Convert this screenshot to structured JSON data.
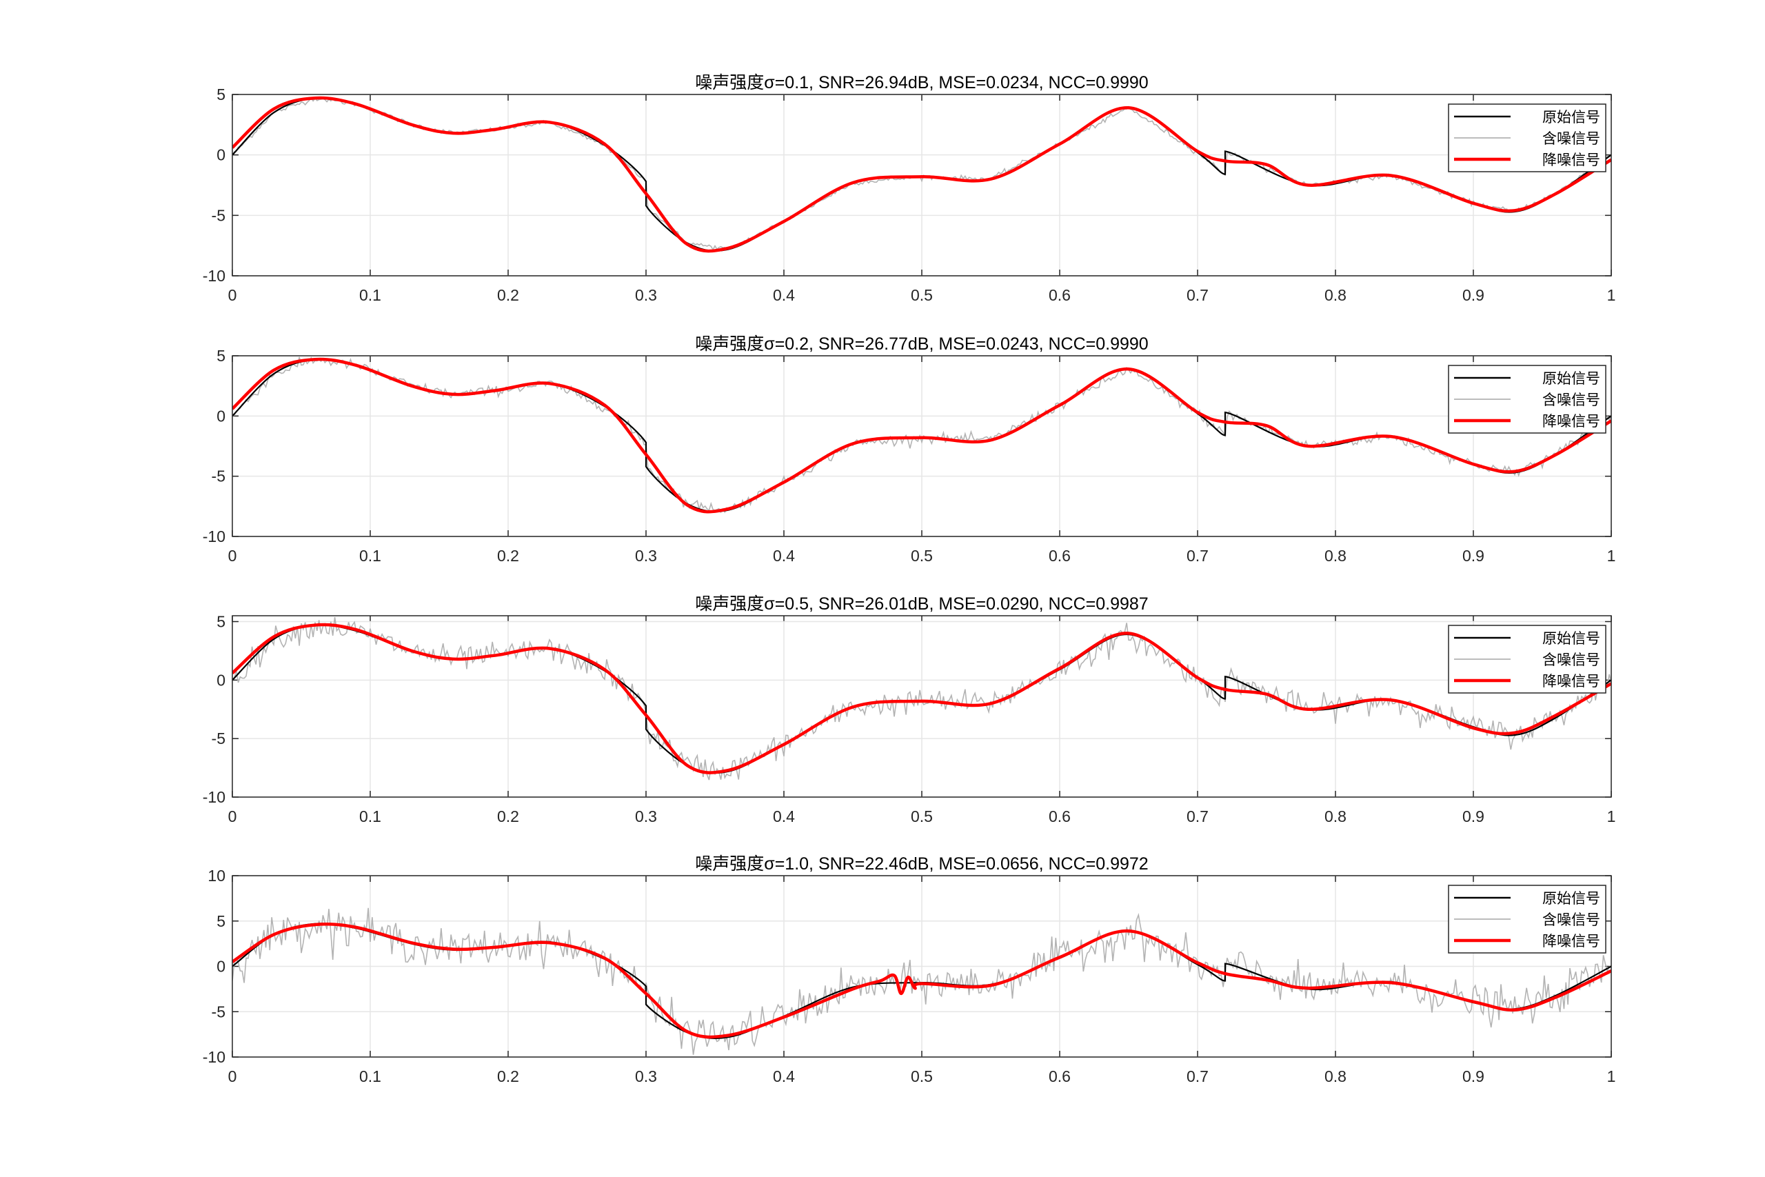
{
  "colors": {
    "original": "#000000",
    "noisy": "#b3b3b3",
    "denoised": "#ff0000",
    "grid": "#e6e6e6",
    "axis": "#262626",
    "text": "#262626",
    "background": "#ffffff"
  },
  "legend": {
    "original": "原始信号",
    "noisy": "含噪信号",
    "denoised": "降噪信号",
    "placement": "top-right"
  },
  "chart_data": [
    {
      "type": "line",
      "title": "噪声强度σ=0.1, SNR=26.94dB, MSE=0.0234, NCC=0.9990",
      "sigma": 0.1,
      "xlim": [
        0,
        1
      ],
      "ylim": [
        -10,
        5
      ],
      "xticks": [
        "0",
        "0.1",
        "0.2",
        "0.3",
        "0.4",
        "0.5",
        "0.6",
        "0.7",
        "0.8",
        "0.9",
        "1"
      ],
      "yticks": [
        "5",
        "0",
        "-5",
        "-10"
      ],
      "grid": true,
      "series": [
        {
          "name": "原始信号",
          "x": [
            0,
            0.03,
            0.06,
            0.09,
            0.13,
            0.16,
            0.19,
            0.23,
            0.27,
            0.3,
            0.3,
            0.33,
            0.36,
            0.4,
            0.45,
            0.5,
            0.55,
            0.6,
            0.65,
            0.7,
            0.72,
            0.72,
            0.78,
            0.84,
            0.9,
            0.93,
            0.96,
            1
          ],
          "y": [
            0,
            3.5,
            4.7,
            4.2,
            2.5,
            1.8,
            2.1,
            2.7,
            0.8,
            -2.2,
            -4.2,
            -7.3,
            -7.8,
            -5.5,
            -2.3,
            -1.8,
            -2.0,
            0.9,
            3.9,
            0.2,
            -1.6,
            0.3,
            -2.5,
            -1.7,
            -4.0,
            -4.7,
            -3.2,
            0
          ]
        },
        {
          "name": "含噪信号"
        },
        {
          "name": "降噪信号",
          "x": [
            0,
            0.03,
            0.06,
            0.09,
            0.13,
            0.16,
            0.19,
            0.23,
            0.27,
            0.3,
            0.33,
            0.36,
            0.4,
            0.45,
            0.5,
            0.55,
            0.6,
            0.65,
            0.7,
            0.72,
            0.75,
            0.78,
            0.84,
            0.9,
            0.93,
            0.96,
            1
          ],
          "y": [
            0.6,
            3.8,
            4.7,
            4.2,
            2.5,
            1.8,
            2.1,
            2.7,
            0.9,
            -3.2,
            -7.4,
            -7.7,
            -5.5,
            -2.3,
            -1.8,
            -2.0,
            0.9,
            3.9,
            0.3,
            -0.5,
            -0.8,
            -2.5,
            -1.7,
            -4.0,
            -4.6,
            -3.2,
            -0.4
          ]
        }
      ]
    },
    {
      "type": "line",
      "title": "噪声强度σ=0.2, SNR=26.77dB, MSE=0.0243, NCC=0.9990",
      "sigma": 0.2,
      "xlim": [
        0,
        1
      ],
      "ylim": [
        -10,
        5
      ],
      "xticks": [
        "0",
        "0.1",
        "0.2",
        "0.3",
        "0.4",
        "0.5",
        "0.6",
        "0.7",
        "0.8",
        "0.9",
        "1"
      ],
      "yticks": [
        "5",
        "0",
        "-5",
        "-10"
      ],
      "grid": true,
      "series": [
        {
          "name": "原始信号",
          "x": [
            0,
            0.03,
            0.06,
            0.09,
            0.13,
            0.16,
            0.19,
            0.23,
            0.27,
            0.3,
            0.3,
            0.33,
            0.36,
            0.4,
            0.45,
            0.5,
            0.55,
            0.6,
            0.65,
            0.7,
            0.72,
            0.72,
            0.78,
            0.84,
            0.9,
            0.93,
            0.96,
            1
          ],
          "y": [
            0,
            3.5,
            4.7,
            4.2,
            2.5,
            1.8,
            2.1,
            2.7,
            0.8,
            -2.2,
            -4.2,
            -7.3,
            -7.8,
            -5.5,
            -2.3,
            -1.8,
            -2.0,
            0.9,
            3.9,
            0.2,
            -1.6,
            0.3,
            -2.5,
            -1.7,
            -4.0,
            -4.7,
            -3.2,
            0
          ]
        },
        {
          "name": "含噪信号"
        },
        {
          "name": "降噪信号",
          "x": [
            0,
            0.03,
            0.06,
            0.09,
            0.13,
            0.16,
            0.19,
            0.23,
            0.27,
            0.3,
            0.33,
            0.36,
            0.4,
            0.45,
            0.5,
            0.55,
            0.6,
            0.65,
            0.7,
            0.72,
            0.75,
            0.78,
            0.84,
            0.9,
            0.93,
            0.96,
            1
          ],
          "y": [
            0.6,
            3.8,
            4.7,
            4.2,
            2.5,
            1.8,
            2.1,
            2.7,
            0.9,
            -3.2,
            -7.4,
            -7.7,
            -5.5,
            -2.3,
            -1.8,
            -2.0,
            0.9,
            3.9,
            0.3,
            -0.5,
            -0.8,
            -2.5,
            -1.7,
            -4.0,
            -4.6,
            -3.2,
            -0.4
          ]
        }
      ]
    },
    {
      "type": "line",
      "title": "噪声强度σ=0.5, SNR=26.01dB, MSE=0.0290, NCC=0.9987",
      "sigma": 0.5,
      "xlim": [
        0,
        1
      ],
      "ylim": [
        -10,
        5.5
      ],
      "xticks": [
        "0",
        "0.1",
        "0.2",
        "0.3",
        "0.4",
        "0.5",
        "0.6",
        "0.7",
        "0.8",
        "0.9",
        "1"
      ],
      "yticks": [
        "5",
        "0",
        "-5",
        "-10"
      ],
      "grid": true,
      "series": [
        {
          "name": "原始信号",
          "x": [
            0,
            0.03,
            0.06,
            0.09,
            0.13,
            0.16,
            0.19,
            0.23,
            0.27,
            0.3,
            0.3,
            0.33,
            0.36,
            0.4,
            0.45,
            0.5,
            0.55,
            0.6,
            0.65,
            0.7,
            0.72,
            0.72,
            0.78,
            0.84,
            0.9,
            0.93,
            0.96,
            1
          ],
          "y": [
            0,
            3.5,
            4.7,
            4.2,
            2.5,
            1.8,
            2.1,
            2.7,
            0.8,
            -2.2,
            -4.2,
            -7.3,
            -7.8,
            -5.5,
            -2.3,
            -1.8,
            -2.0,
            0.9,
            3.9,
            0.2,
            -1.6,
            0.3,
            -2.5,
            -1.7,
            -4.0,
            -4.7,
            -3.2,
            0
          ]
        },
        {
          "name": "含噪信号"
        },
        {
          "name": "降噪信号",
          "x": [
            0,
            0.03,
            0.06,
            0.09,
            0.13,
            0.16,
            0.19,
            0.23,
            0.27,
            0.3,
            0.33,
            0.36,
            0.4,
            0.45,
            0.5,
            0.55,
            0.6,
            0.65,
            0.7,
            0.72,
            0.75,
            0.78,
            0.84,
            0.9,
            0.93,
            0.96,
            1
          ],
          "y": [
            0.6,
            3.7,
            4.7,
            4.3,
            2.5,
            1.8,
            2.1,
            2.7,
            0.9,
            -3.0,
            -7.3,
            -7.7,
            -5.5,
            -2.3,
            -1.8,
            -2.0,
            1.0,
            4.0,
            0.2,
            -0.8,
            -1.2,
            -2.5,
            -1.7,
            -4.1,
            -4.5,
            -3.0,
            -0.3
          ]
        }
      ]
    },
    {
      "type": "line",
      "title": "噪声强度σ=1.0, SNR=22.46dB, MSE=0.0656, NCC=0.9972",
      "sigma": 1.0,
      "xlim": [
        0,
        1
      ],
      "ylim": [
        -10,
        10
      ],
      "xticks": [
        "0",
        "0.1",
        "0.2",
        "0.3",
        "0.4",
        "0.5",
        "0.6",
        "0.7",
        "0.8",
        "0.9",
        "1"
      ],
      "yticks": [
        "10",
        "5",
        "0",
        "-5",
        "-10"
      ],
      "grid": true,
      "series": [
        {
          "name": "原始信号",
          "x": [
            0,
            0.03,
            0.06,
            0.09,
            0.13,
            0.16,
            0.19,
            0.23,
            0.27,
            0.3,
            0.3,
            0.33,
            0.36,
            0.4,
            0.45,
            0.5,
            0.55,
            0.6,
            0.65,
            0.7,
            0.72,
            0.72,
            0.78,
            0.84,
            0.9,
            0.93,
            0.96,
            1
          ],
          "y": [
            0,
            3.5,
            4.7,
            4.2,
            2.5,
            1.8,
            2.1,
            2.7,
            0.8,
            -2.2,
            -4.2,
            -7.3,
            -7.8,
            -5.5,
            -2.3,
            -1.8,
            -2.0,
            0.9,
            3.9,
            0.2,
            -1.6,
            0.3,
            -2.5,
            -1.7,
            -4.0,
            -4.7,
            -3.2,
            0
          ]
        },
        {
          "name": "含噪信号"
        },
        {
          "name": "降噪信号",
          "x": [
            0,
            0.03,
            0.06,
            0.09,
            0.13,
            0.16,
            0.19,
            0.23,
            0.27,
            0.3,
            0.33,
            0.36,
            0.4,
            0.45,
            0.47,
            0.48,
            0.485,
            0.49,
            0.495,
            0.5,
            0.55,
            0.6,
            0.65,
            0.7,
            0.72,
            0.75,
            0.78,
            0.84,
            0.9,
            0.93,
            0.96,
            1
          ],
          "y": [
            0.5,
            3.5,
            4.6,
            4.3,
            2.6,
            1.9,
            2.1,
            2.6,
            0.9,
            -3.0,
            -7.2,
            -7.6,
            -5.6,
            -2.5,
            -1.6,
            -1.0,
            -3.0,
            -1.2,
            -2.4,
            -1.9,
            -2.1,
            1.0,
            3.9,
            0.4,
            -0.8,
            -1.5,
            -2.4,
            -1.8,
            -3.9,
            -4.8,
            -3.4,
            -0.5
          ]
        }
      ]
    }
  ]
}
